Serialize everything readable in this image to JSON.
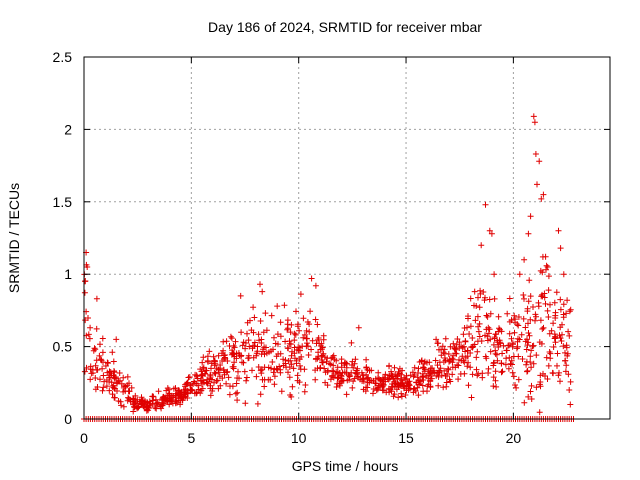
{
  "chart_data": {
    "type": "scatter",
    "title": "Day 186 of 2024, SRMTID for receiver mbar",
    "xlabel": "GPS time / hours",
    "ylabel": "SRMTID / TECUs",
    "xlim": [
      0,
      24.5
    ],
    "ylim": [
      0,
      2.5
    ],
    "xticks": [
      0,
      5,
      10,
      15,
      20
    ],
    "xtick_labels": [
      "0",
      "5",
      "10",
      "15",
      "20"
    ],
    "yticks": [
      0,
      0.5,
      1,
      1.5,
      2,
      2.5
    ],
    "ytick_labels": [
      "0",
      "0.5",
      "1",
      "1.5",
      "2",
      "2.5"
    ],
    "grid": true,
    "marker": "+",
    "series": [
      {
        "name": "SRMTID",
        "color": "#e00000",
        "envelope": {
          "hours": [
            0.0,
            0.1,
            0.2,
            0.4,
            0.8,
            1.2,
            1.6,
            2.0,
            2.5,
            3.0,
            3.5,
            4.0,
            4.5,
            5.0,
            5.5,
            6.0,
            6.5,
            7.0,
            7.5,
            8.0,
            8.5,
            9.0,
            9.5,
            10.0,
            10.5,
            11.0,
            11.5,
            12.0,
            12.5,
            13.0,
            13.5,
            14.0,
            14.5,
            15.0,
            15.5,
            16.0,
            16.5,
            17.0,
            17.5,
            18.0,
            18.5,
            19.0,
            19.5,
            20.0,
            20.5,
            21.0,
            21.5,
            22.0,
            22.4,
            22.7
          ],
          "centers": [
            0.65,
            0.8,
            0.55,
            0.35,
            0.4,
            0.3,
            0.25,
            0.18,
            0.1,
            0.1,
            0.13,
            0.15,
            0.16,
            0.22,
            0.28,
            0.33,
            0.36,
            0.4,
            0.42,
            0.45,
            0.44,
            0.42,
            0.45,
            0.5,
            0.55,
            0.45,
            0.35,
            0.33,
            0.35,
            0.3,
            0.25,
            0.26,
            0.26,
            0.25,
            0.27,
            0.3,
            0.35,
            0.38,
            0.45,
            0.55,
            0.6,
            0.55,
            0.5,
            0.5,
            0.55,
            0.6,
            0.6,
            0.6,
            0.6,
            0.6
          ],
          "spreads": [
            0.25,
            0.3,
            0.25,
            0.12,
            0.18,
            0.1,
            0.1,
            0.07,
            0.04,
            0.04,
            0.04,
            0.04,
            0.05,
            0.07,
            0.1,
            0.12,
            0.15,
            0.18,
            0.2,
            0.22,
            0.2,
            0.2,
            0.2,
            0.2,
            0.25,
            0.15,
            0.12,
            0.1,
            0.12,
            0.08,
            0.07,
            0.08,
            0.08,
            0.08,
            0.08,
            0.1,
            0.12,
            0.1,
            0.15,
            0.25,
            0.35,
            0.3,
            0.2,
            0.2,
            0.35,
            0.45,
            0.35,
            0.3,
            0.25,
            0.2
          ],
          "point_count": 1200
        },
        "peaks": [
          {
            "x": 0.05,
            "y": 0.95
          },
          {
            "x": 0.1,
            "y": 1.15
          },
          {
            "x": 0.15,
            "y": 1.05
          },
          {
            "x": 0.6,
            "y": 0.83
          },
          {
            "x": 1.5,
            "y": 0.55
          },
          {
            "x": 7.3,
            "y": 0.85
          },
          {
            "x": 8.2,
            "y": 0.93
          },
          {
            "x": 8.3,
            "y": 0.88
          },
          {
            "x": 9.0,
            "y": 0.78
          },
          {
            "x": 10.6,
            "y": 0.97
          },
          {
            "x": 10.8,
            "y": 0.92
          },
          {
            "x": 12.8,
            "y": 0.63
          },
          {
            "x": 16.4,
            "y": 0.55
          },
          {
            "x": 18.2,
            "y": 0.88
          },
          {
            "x": 18.5,
            "y": 1.2
          },
          {
            "x": 18.7,
            "y": 1.48
          },
          {
            "x": 18.9,
            "y": 1.3
          },
          {
            "x": 19.0,
            "y": 1.28
          },
          {
            "x": 19.1,
            "y": 1.0
          },
          {
            "x": 20.3,
            "y": 1.0
          },
          {
            "x": 20.5,
            "y": 1.1
          },
          {
            "x": 20.7,
            "y": 1.28
          },
          {
            "x": 20.8,
            "y": 1.4
          },
          {
            "x": 20.95,
            "y": 2.09
          },
          {
            "x": 21.0,
            "y": 2.05
          },
          {
            "x": 21.05,
            "y": 1.83
          },
          {
            "x": 21.1,
            "y": 1.62
          },
          {
            "x": 21.2,
            "y": 1.78
          },
          {
            "x": 21.3,
            "y": 1.52
          },
          {
            "x": 21.4,
            "y": 1.55
          },
          {
            "x": 21.5,
            "y": 1.12
          },
          {
            "x": 21.6,
            "y": 1.05
          },
          {
            "x": 22.1,
            "y": 1.3
          },
          {
            "x": 22.2,
            "y": 1.18
          },
          {
            "x": 22.5,
            "y": 0.82
          },
          {
            "x": 22.6,
            "y": 0.2
          },
          {
            "x": 22.65,
            "y": 0.1
          }
        ],
        "zero_rows": {
          "y": 0,
          "hour_range": [
            0.0,
            22.8
          ],
          "step": 0.1
        }
      }
    ]
  }
}
